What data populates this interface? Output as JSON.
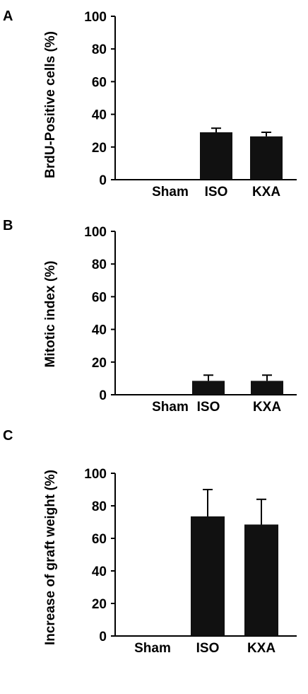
{
  "chart_data": [
    {
      "type": "bar",
      "panel": "A",
      "categories": [
        "Sham",
        "ISO",
        "KXA"
      ],
      "values": [
        0,
        29,
        26.5
      ],
      "errors": [
        0,
        2.5,
        2.5
      ],
      "ylabel": "BrdU-Positive cells (%)",
      "ylim": [
        0,
        100
      ],
      "yticks": [
        "0",
        "20",
        "40",
        "60",
        "80",
        "100"
      ],
      "bar_color": "#111111"
    },
    {
      "type": "bar",
      "panel": "B",
      "categories": [
        "Sham",
        "ISO",
        "KXA"
      ],
      "values": [
        0,
        8.5,
        8.5
      ],
      "errors": [
        0,
        3.5,
        3.5
      ],
      "ylabel": "Mitotic index  (%)",
      "ylim": [
        0,
        100
      ],
      "yticks": [
        "0",
        "20",
        "40",
        "60",
        "80",
        "100"
      ],
      "bar_color": "#111111"
    },
    {
      "type": "bar",
      "panel": "C",
      "categories": [
        "Sham",
        "ISO",
        "KXA"
      ],
      "values": [
        0,
        73.5,
        68.5
      ],
      "errors": [
        0,
        16.5,
        15.5
      ],
      "ylabel": "Increase of graft weight (%)",
      "ylim": [
        0,
        100
      ],
      "yticks": [
        "0",
        "20",
        "40",
        "60",
        "80",
        "100"
      ],
      "bar_color": "#111111"
    }
  ]
}
